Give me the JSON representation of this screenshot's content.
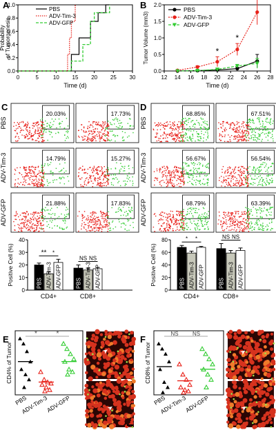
{
  "panels": {
    "A": {
      "letter": "A",
      "ylabel": "Probability of Tumorgenesis",
      "xlabel": "Time (d)"
    },
    "B": {
      "letter": "B",
      "ylabel": "Tumor Volume (mm3)",
      "xlabel": "Time (d)"
    },
    "C": {
      "letter": "C",
      "ylabel": "Positive Cell (%)"
    },
    "D": {
      "letter": "D",
      "ylabel": "Positive Cell (%)"
    },
    "E": {
      "letter": "E",
      "ylabel": "CD4% of Tumor"
    },
    "F": {
      "letter": "F",
      "ylabel": "CD8% of Tumor"
    }
  },
  "labels": {
    "star": "*",
    "dstar": "**",
    "ns": "NS",
    "cd4": "CD4+",
    "cd8": "CD8+"
  },
  "colors": {
    "pbs": "#000000",
    "tim3": "#e8221a",
    "gfp": "#33cc33",
    "tim3_bar": "#c7c8ba",
    "flow_red": "#e81f19",
    "flow_green": "#33cc33"
  },
  "chart_data": [
    {
      "panel": "A",
      "type": "line",
      "title": "",
      "xlabel": "Time (d)",
      "ylabel": "Probability of Tumorgenesis",
      "xlim": [
        0,
        30
      ],
      "ylim": [
        0,
        1.0
      ],
      "xticks": [
        0,
        5,
        10,
        15,
        20,
        25,
        30
      ],
      "yticks": [
        0.0,
        0.2,
        0.4,
        0.6,
        0.8,
        1.0
      ],
      "legend": "top-left",
      "series": [
        {
          "name": "PBS",
          "style": "solid",
          "x": [
            0,
            14,
            14,
            16,
            16,
            19,
            19,
            21,
            21,
            23,
            23,
            24
          ],
          "y": [
            0,
            0,
            0.25,
            0.25,
            0.5,
            0.5,
            0.75,
            0.75,
            0.88,
            0.88,
            1.0,
            1.0
          ]
        },
        {
          "name": "ADV-Tim-3",
          "style": "dotted",
          "x": [
            0,
            13,
            13,
            13.5,
            13.5,
            14,
            14,
            15,
            15
          ],
          "y": [
            0,
            0,
            0.25,
            0.25,
            0.5,
            0.5,
            0.75,
            0.75,
            1.0
          ]
        },
        {
          "name": "ADV-GFP",
          "style": "dashed",
          "x": [
            0,
            14,
            14,
            17,
            17,
            19,
            19,
            20,
            20,
            24,
            24
          ],
          "y": [
            0,
            0,
            0.15,
            0.15,
            0.4,
            0.4,
            0.75,
            0.75,
            0.88,
            0.88,
            1.0
          ]
        }
      ]
    },
    {
      "panel": "B",
      "type": "line",
      "title": "",
      "xlabel": "Time (d)",
      "ylabel": "Tumor Volume (mm3)",
      "xlim": [
        12,
        28
      ],
      "ylim": [
        0,
        2.0
      ],
      "xticks": [
        12,
        14,
        16,
        18,
        20,
        22,
        24,
        26,
        28
      ],
      "yticks": [
        0.0,
        0.5,
        1.0,
        1.5,
        2.0
      ],
      "legend": "top-left",
      "x": [
        14,
        17,
        20,
        23,
        26
      ],
      "series": [
        {
          "name": "PBS",
          "values": [
            0.0,
            0.01,
            0.03,
            0.07,
            0.3
          ],
          "err": [
            0.0,
            0.01,
            0.03,
            0.04,
            0.2
          ]
        },
        {
          "name": "ADV-Tim-3",
          "values": [
            0.02,
            0.12,
            0.28,
            0.65,
            1.78
          ],
          "err": [
            0.02,
            0.04,
            0.15,
            0.18,
            0.38
          ]
        },
        {
          "name": "ADV-GFP",
          "values": [
            0.0,
            0.01,
            0.05,
            0.15,
            0.23
          ],
          "err": [
            0.0,
            0.01,
            0.03,
            0.05,
            0.15
          ]
        }
      ],
      "annotations": [
        {
          "x": 20,
          "text": "*"
        },
        {
          "x": 23,
          "text": "*"
        },
        {
          "x": 26,
          "text": "*"
        }
      ]
    },
    {
      "panel": "C",
      "type": "bar",
      "title": "",
      "ylabel": "Positive Cell (%)",
      "ylim": [
        0,
        40
      ],
      "yticks": [
        0,
        10,
        20,
        30,
        40
      ],
      "group_labels": [
        "CD4+",
        "CD8+"
      ],
      "categories": [
        "PBS",
        "ADV-Tim-3",
        "ADV-GFP"
      ],
      "series": [
        {
          "group": "CD4+",
          "values": [
            20,
            13,
            22
          ],
          "err": [
            1.5,
            1.5,
            2.5
          ]
        },
        {
          "group": "CD8+",
          "values": [
            17.5,
            16,
            17
          ],
          "err": [
            2.5,
            1.5,
            1.0
          ]
        }
      ],
      "flow_percentages": [
        [
          "20.03%",
          "17.73%"
        ],
        [
          "14.79%",
          "15.27%"
        ],
        [
          "21.88%",
          "17.83%"
        ]
      ],
      "row_labels": [
        "PBS",
        "ADV-Tim-3",
        "ADV-GFP"
      ],
      "significance": [
        "**",
        "*",
        "NS",
        "NS"
      ]
    },
    {
      "panel": "D",
      "type": "bar",
      "title": "",
      "ylabel": "Positive Cell (%)",
      "ylim": [
        0,
        80
      ],
      "yticks": [
        0,
        20,
        40,
        60,
        80
      ],
      "group_labels": [
        "CD4+",
        "CD8+"
      ],
      "categories": [
        "PBS",
        "ADV-Tim-3",
        "ADV-GFP"
      ],
      "series": [
        {
          "group": "CD4+",
          "values": [
            68,
            59,
            68
          ],
          "err": [
            3,
            3,
            1.5
          ]
        },
        {
          "group": "CD8+",
          "values": [
            66,
            59,
            63
          ],
          "err": [
            8,
            4,
            4
          ]
        }
      ],
      "flow_percentages": [
        [
          "68.85%",
          "67.51%"
        ],
        [
          "56.67%",
          "56.54%"
        ],
        [
          "68.79%",
          "63.39%"
        ]
      ],
      "row_labels": [
        "PBS",
        "ADV-Tim-3",
        "ADV-GFP"
      ],
      "significance": [
        "*",
        "*",
        "NS",
        "NS"
      ]
    },
    {
      "panel": "E",
      "type": "scatter",
      "title": "",
      "ylabel": "CD4% of Tumor",
      "categories": [
        "PBS",
        "ADV-Tim-3",
        "ADV-GFP"
      ],
      "ylim": [
        0,
        25
      ],
      "points": [
        [
          22,
          20,
          17,
          13,
          10,
          8,
          6,
          3
        ],
        [
          9,
          6,
          5,
          4.5,
          4,
          3,
          2,
          1.5
        ],
        [
          20,
          18,
          16,
          14,
          13,
          10,
          9,
          8
        ]
      ],
      "means": [
        13,
        5,
        13
      ],
      "significance": [
        "*",
        "*"
      ]
    },
    {
      "panel": "F",
      "type": "scatter",
      "title": "",
      "ylabel": "CD8% of Tumor",
      "categories": [
        "PBS",
        "ADV-Tim-3",
        "ADV-GFP"
      ],
      "ylim": [
        0,
        25
      ],
      "points": [
        [
          20,
          18,
          16,
          13,
          10,
          5,
          3,
          1
        ],
        [
          12,
          8,
          6,
          4,
          3,
          2,
          1.5,
          1
        ],
        [
          18,
          16,
          14,
          12,
          10,
          8,
          6,
          3
        ]
      ],
      "means": [
        11,
        5.5,
        10
      ],
      "significance": [
        "NS",
        "NS"
      ]
    }
  ]
}
